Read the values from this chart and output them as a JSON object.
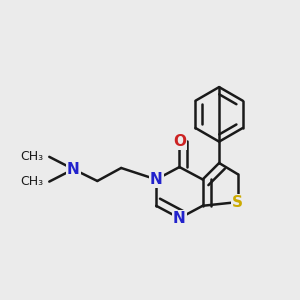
{
  "bg_color": "#ebebeb",
  "bond_color": "#1a1a1a",
  "bond_width": 1.8,
  "atom_colors": {
    "N": "#2222cc",
    "O": "#cc2222",
    "S": "#ccaa00"
  }
}
